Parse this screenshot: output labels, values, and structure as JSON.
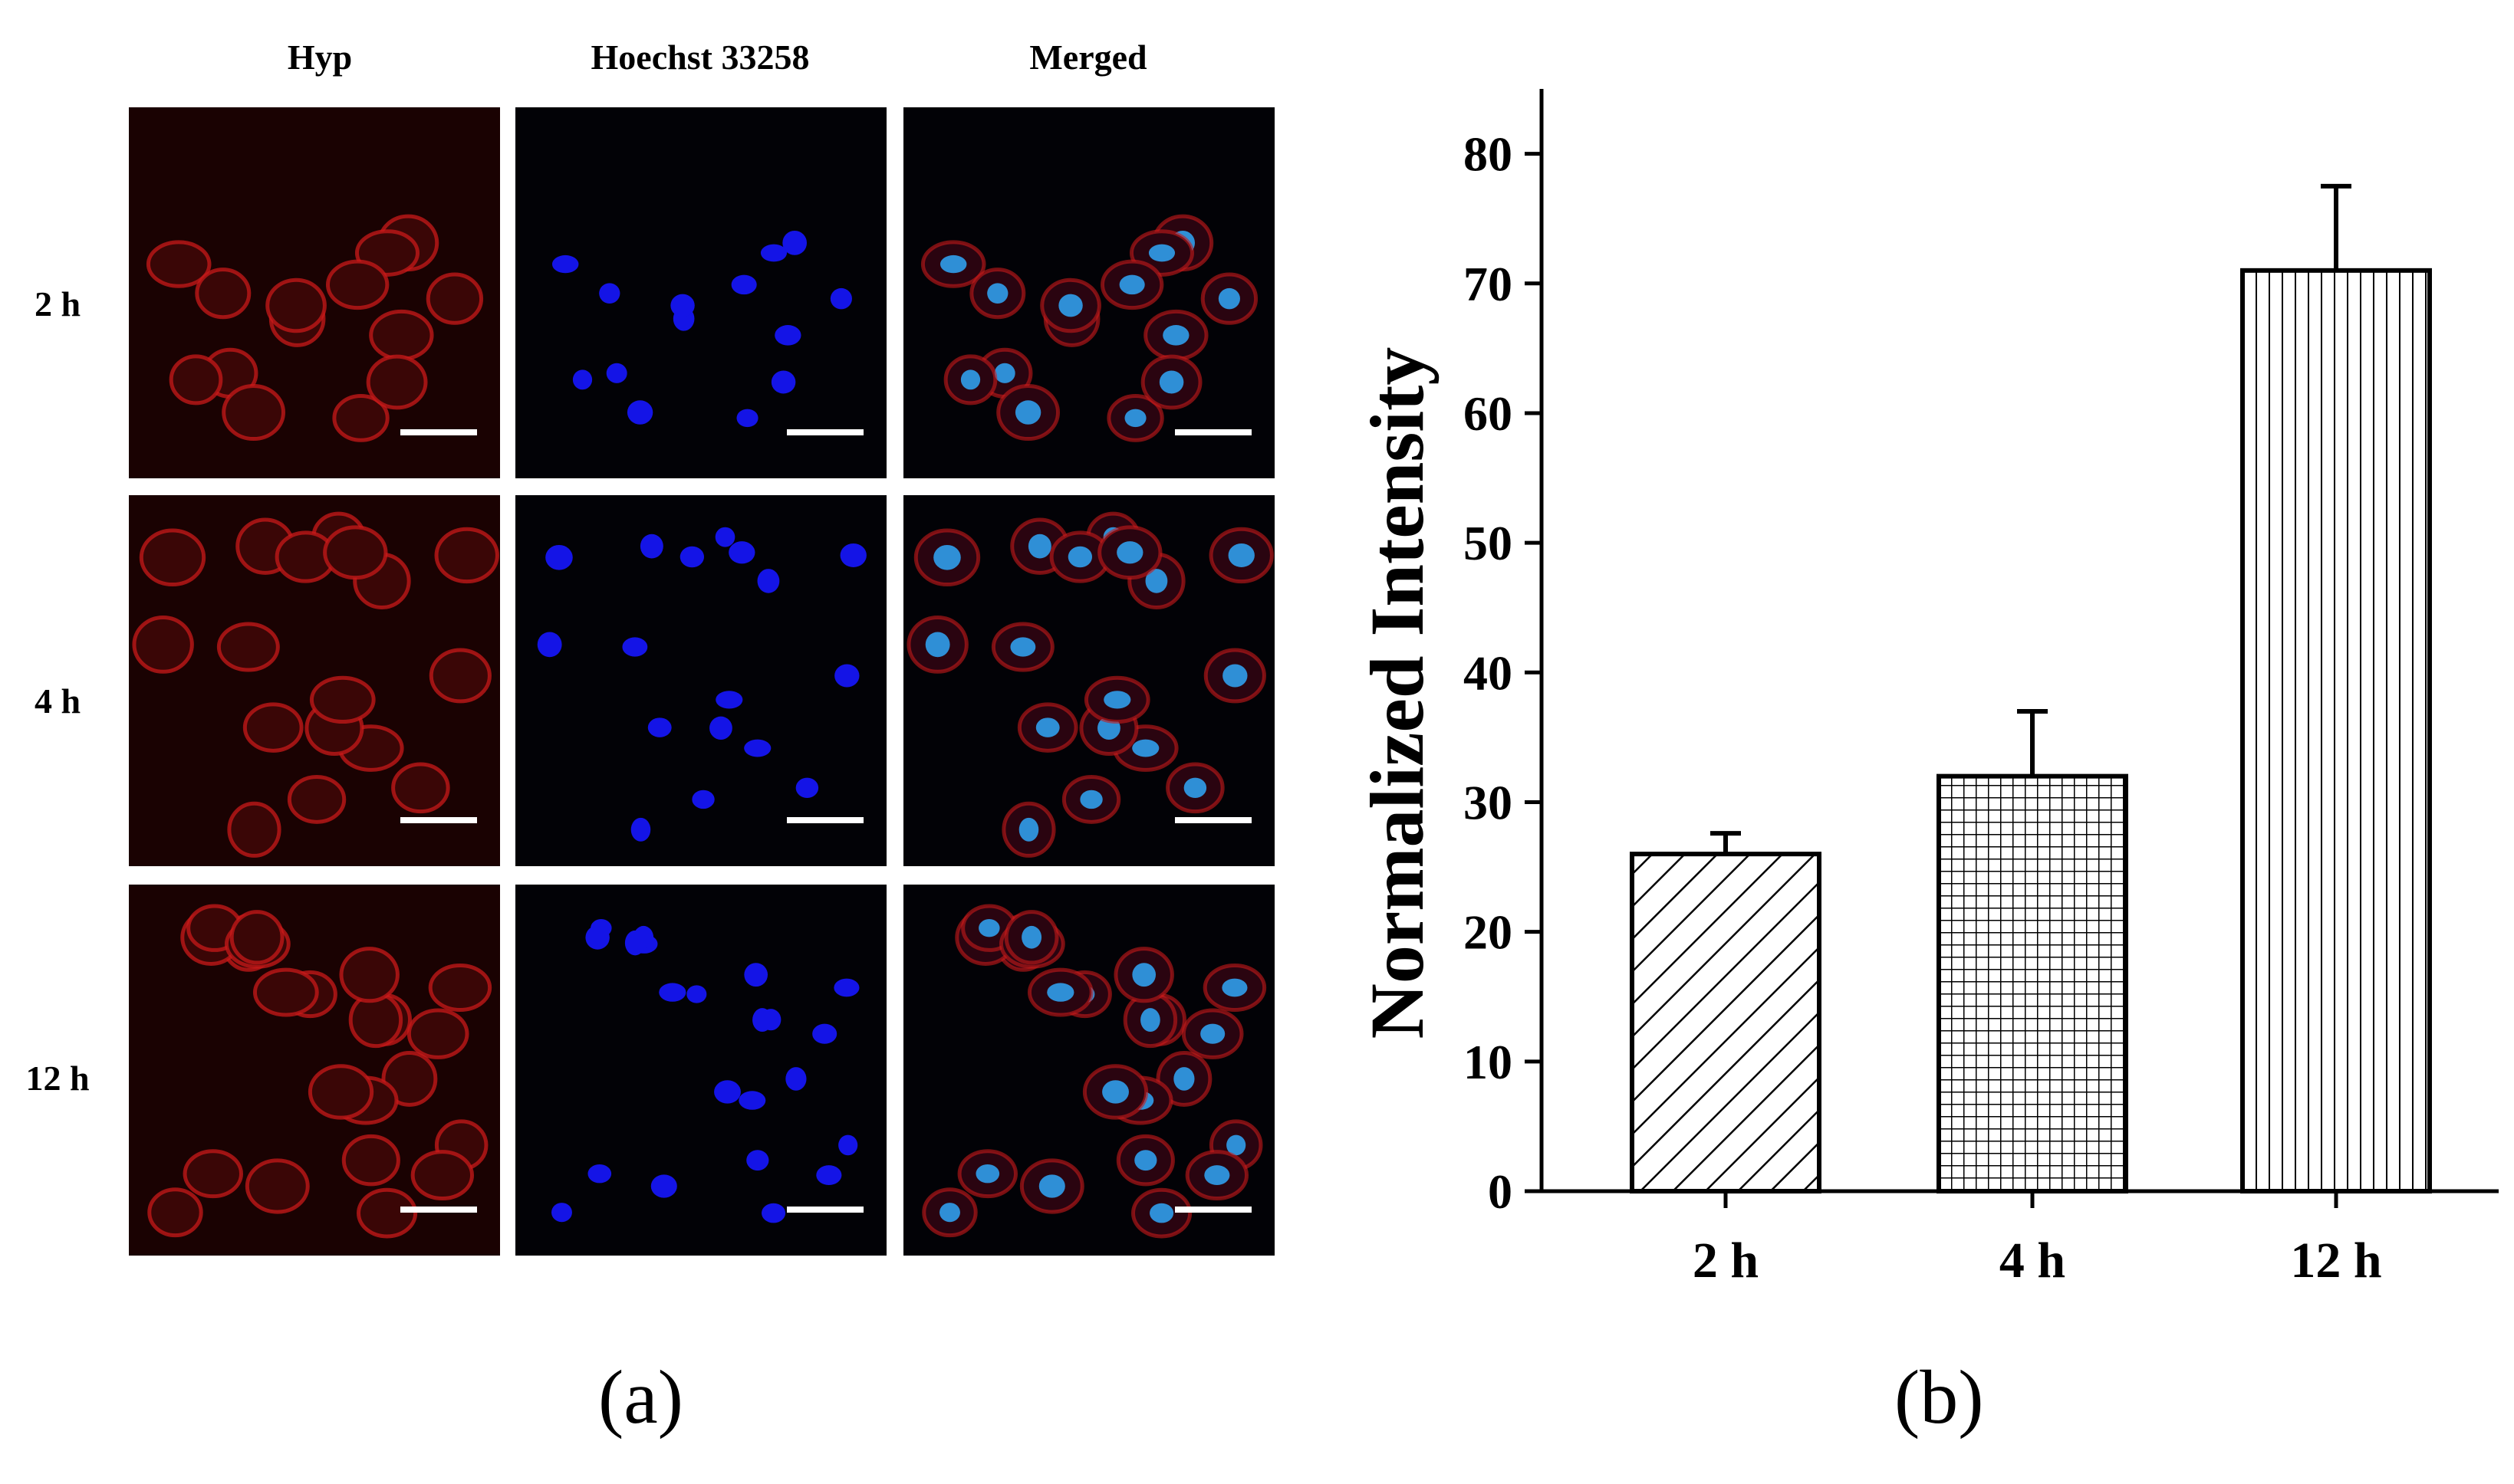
{
  "panel_a": {
    "label": "(a)",
    "column_headers": [
      "Hyp",
      "Hoechst 33258",
      "Merged"
    ],
    "row_labels": [
      "2 h",
      "4 h",
      "12 h"
    ],
    "channel_colors": {
      "hyp": "#c81a1a",
      "hoechst": "#1414e6",
      "merged_nucleus": "#2f8fd6"
    }
  },
  "panel_b": {
    "label": "(b)"
  },
  "chart_data": {
    "type": "bar",
    "categories": [
      "2 h",
      "4 h",
      "12 h"
    ],
    "values": [
      26,
      32,
      71
    ],
    "errors": [
      1.6,
      5,
      6.5
    ],
    "patterns": [
      "diagonal-hatch",
      "grid-hatch",
      "vertical-hatch"
    ],
    "ylabel": "Normalized Intensity",
    "xlabel": "",
    "title": "",
    "ylim": [
      0,
      85
    ],
    "yticks": [
      0,
      10,
      20,
      30,
      40,
      50,
      60,
      70,
      80
    ],
    "grid": false,
    "legend": "none"
  }
}
